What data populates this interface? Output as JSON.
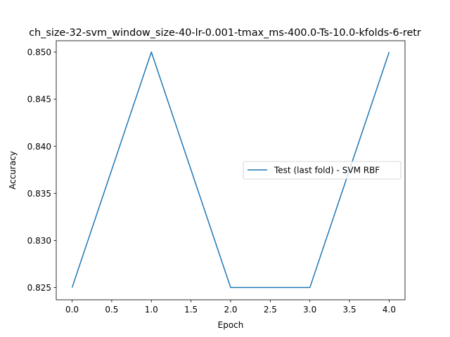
{
  "chart_data": {
    "type": "line",
    "title": "ch_size-32-svm_window_size-40-lr-0.001-tmax_ms-400.0-Ts-10.0-kfolds-6-retr",
    "xlabel": "Epoch",
    "ylabel": "Accuracy",
    "xlim": [
      -0.2,
      4.2
    ],
    "ylim": [
      0.8237,
      0.8512
    ],
    "x_ticks": [
      0.0,
      0.5,
      1.0,
      1.5,
      2.0,
      2.5,
      3.0,
      3.5,
      4.0
    ],
    "x_tick_labels": [
      "0.0",
      "0.5",
      "1.0",
      "1.5",
      "2.0",
      "2.5",
      "3.0",
      "3.5",
      "4.0"
    ],
    "y_ticks": [
      0.825,
      0.83,
      0.835,
      0.84,
      0.845,
      0.85
    ],
    "y_tick_labels": [
      "0.825",
      "0.830",
      "0.835",
      "0.840",
      "0.845",
      "0.850"
    ],
    "grid": false,
    "legend_position": "center-right",
    "series": [
      {
        "name": "Test (last fold) - SVM RBF",
        "color": "#1f77b4",
        "x": [
          0,
          1,
          2,
          3,
          4
        ],
        "y": [
          0.825,
          0.85,
          0.825,
          0.825,
          0.85
        ]
      }
    ]
  }
}
